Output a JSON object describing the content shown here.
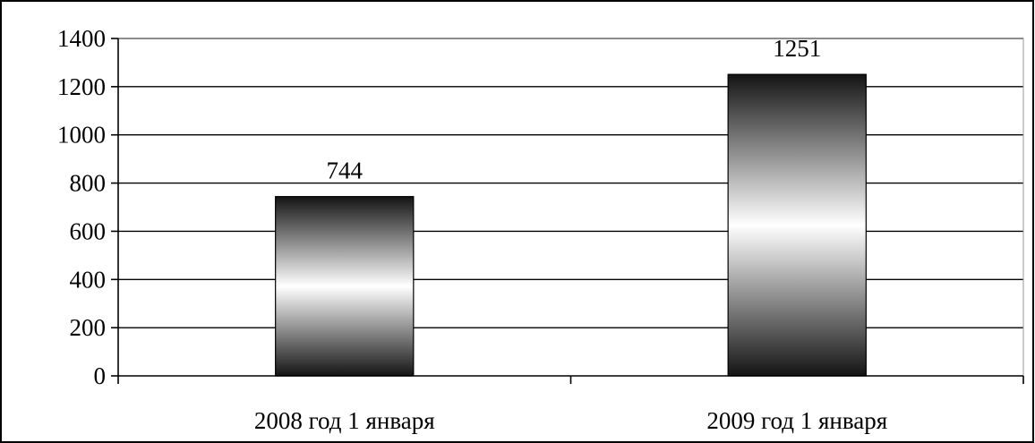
{
  "chart_data": {
    "type": "bar",
    "categories": [
      "2008 год 1 января",
      "2009 год 1 января"
    ],
    "values": [
      744,
      1251
    ],
    "data_labels": [
      "744",
      "1251"
    ],
    "ylim": [
      0,
      1400
    ],
    "y_ticks": [
      0,
      200,
      400,
      600,
      800,
      1000,
      1200,
      1400
    ],
    "y_tick_labels": [
      "0",
      "200",
      "400",
      "600",
      "800",
      "1000",
      "1200",
      "1400"
    ],
    "grid": true,
    "legend": "none",
    "bar_fill": "vertical gradient black-white-black",
    "colors": {
      "bar_dark": "#141414",
      "bar_light": "#ffffff",
      "grid": "#000000",
      "frame": "#000000",
      "plot_border": "#9a9a9a"
    }
  }
}
